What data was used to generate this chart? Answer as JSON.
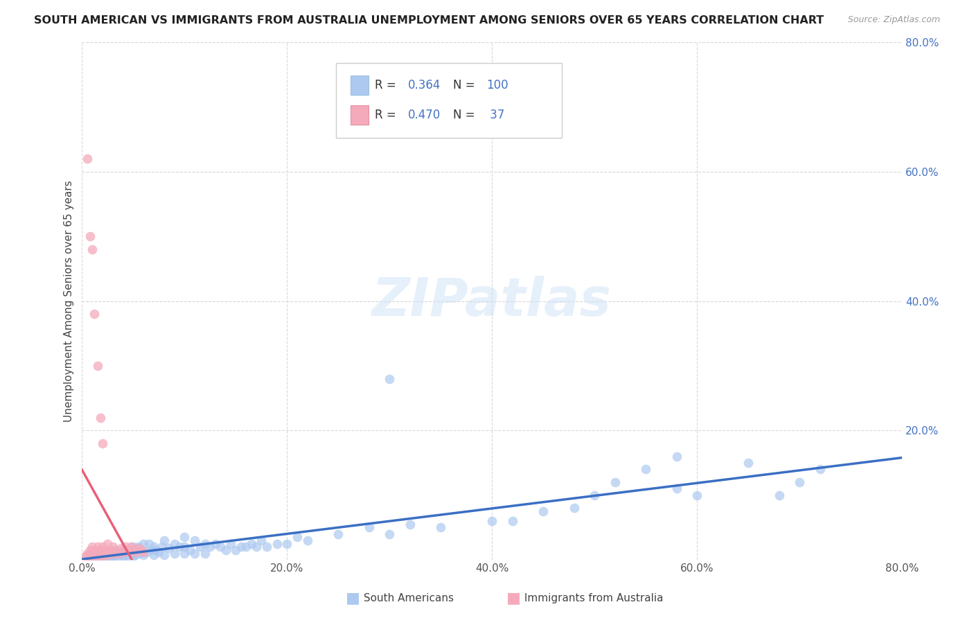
{
  "title": "SOUTH AMERICAN VS IMMIGRANTS FROM AUSTRALIA UNEMPLOYMENT AMONG SENIORS OVER 65 YEARS CORRELATION CHART",
  "source": "Source: ZipAtlas.com",
  "ylabel": "Unemployment Among Seniors over 65 years",
  "xlim": [
    0.0,
    0.8
  ],
  "ylim": [
    0.0,
    0.8
  ],
  "xtick_labels": [
    "0.0%",
    "20.0%",
    "40.0%",
    "60.0%",
    "80.0%"
  ],
  "xtick_vals": [
    0.0,
    0.2,
    0.4,
    0.6,
    0.8
  ],
  "ytick_labels": [
    "20.0%",
    "40.0%",
    "60.0%",
    "80.0%"
  ],
  "ytick_vals": [
    0.2,
    0.4,
    0.6,
    0.8
  ],
  "r_south_american": 0.364,
  "n_south_american": 100,
  "r_australia": 0.47,
  "n_australia": 37,
  "color_south_american": "#adc9f0",
  "color_australia": "#f5aabb",
  "line_color_south_american": "#3a6fc4",
  "line_color_australia": "#e8607a",
  "background_color": "#ffffff",
  "grid_color": "#d8d8d8",
  "sa_x": [
    0.005,
    0.008,
    0.01,
    0.01,
    0.012,
    0.013,
    0.015,
    0.015,
    0.018,
    0.02,
    0.02,
    0.022,
    0.022,
    0.025,
    0.025,
    0.025,
    0.028,
    0.03,
    0.03,
    0.03,
    0.032,
    0.033,
    0.035,
    0.035,
    0.038,
    0.04,
    0.04,
    0.04,
    0.042,
    0.045,
    0.045,
    0.048,
    0.05,
    0.05,
    0.05,
    0.052,
    0.055,
    0.055,
    0.058,
    0.06,
    0.06,
    0.063,
    0.065,
    0.068,
    0.07,
    0.07,
    0.072,
    0.075,
    0.078,
    0.08,
    0.08,
    0.085,
    0.09,
    0.09,
    0.095,
    0.1,
    0.1,
    0.1,
    0.105,
    0.11,
    0.11,
    0.115,
    0.12,
    0.12,
    0.125,
    0.13,
    0.135,
    0.14,
    0.145,
    0.15,
    0.155,
    0.16,
    0.165,
    0.17,
    0.175,
    0.18,
    0.19,
    0.2,
    0.21,
    0.22,
    0.25,
    0.28,
    0.3,
    0.32,
    0.35,
    0.4,
    0.42,
    0.45,
    0.48,
    0.5,
    0.52,
    0.55,
    0.58,
    0.6,
    0.65,
    0.68,
    0.7,
    0.72,
    0.3,
    0.58
  ],
  "sa_y": [
    0.005,
    0.005,
    0.005,
    0.008,
    0.005,
    0.006,
    0.006,
    0.008,
    0.005,
    0.006,
    0.01,
    0.005,
    0.008,
    0.005,
    0.008,
    0.012,
    0.005,
    0.005,
    0.008,
    0.015,
    0.006,
    0.01,
    0.005,
    0.012,
    0.008,
    0.005,
    0.01,
    0.015,
    0.008,
    0.005,
    0.015,
    0.01,
    0.005,
    0.01,
    0.02,
    0.008,
    0.01,
    0.02,
    0.012,
    0.008,
    0.025,
    0.012,
    0.025,
    0.015,
    0.008,
    0.02,
    0.015,
    0.012,
    0.02,
    0.008,
    0.03,
    0.018,
    0.01,
    0.025,
    0.02,
    0.01,
    0.02,
    0.035,
    0.015,
    0.01,
    0.03,
    0.02,
    0.01,
    0.025,
    0.02,
    0.025,
    0.02,
    0.015,
    0.025,
    0.015,
    0.02,
    0.02,
    0.025,
    0.02,
    0.03,
    0.02,
    0.025,
    0.025,
    0.035,
    0.03,
    0.04,
    0.05,
    0.04,
    0.055,
    0.05,
    0.06,
    0.06,
    0.075,
    0.08,
    0.1,
    0.12,
    0.14,
    0.16,
    0.1,
    0.15,
    0.1,
    0.12,
    0.14,
    0.28,
    0.11
  ],
  "au_x": [
    0.003,
    0.005,
    0.005,
    0.006,
    0.008,
    0.008,
    0.01,
    0.01,
    0.01,
    0.012,
    0.012,
    0.013,
    0.015,
    0.015,
    0.018,
    0.018,
    0.02,
    0.02,
    0.022,
    0.025,
    0.025,
    0.025,
    0.028,
    0.03,
    0.03,
    0.033,
    0.035,
    0.038,
    0.04,
    0.042,
    0.045,
    0.048,
    0.05,
    0.052,
    0.055,
    0.058,
    0.06
  ],
  "au_y": [
    0.005,
    0.005,
    0.01,
    0.005,
    0.008,
    0.015,
    0.005,
    0.01,
    0.02,
    0.008,
    0.015,
    0.01,
    0.005,
    0.02,
    0.008,
    0.015,
    0.005,
    0.02,
    0.012,
    0.008,
    0.015,
    0.025,
    0.012,
    0.01,
    0.02,
    0.015,
    0.01,
    0.018,
    0.012,
    0.02,
    0.015,
    0.02,
    0.015,
    0.012,
    0.018,
    0.015,
    0.012
  ],
  "au_outliers_x": [
    0.005,
    0.008,
    0.01,
    0.012,
    0.015,
    0.018,
    0.02
  ],
  "au_outliers_y": [
    0.62,
    0.5,
    0.48,
    0.38,
    0.3,
    0.22,
    0.18
  ]
}
